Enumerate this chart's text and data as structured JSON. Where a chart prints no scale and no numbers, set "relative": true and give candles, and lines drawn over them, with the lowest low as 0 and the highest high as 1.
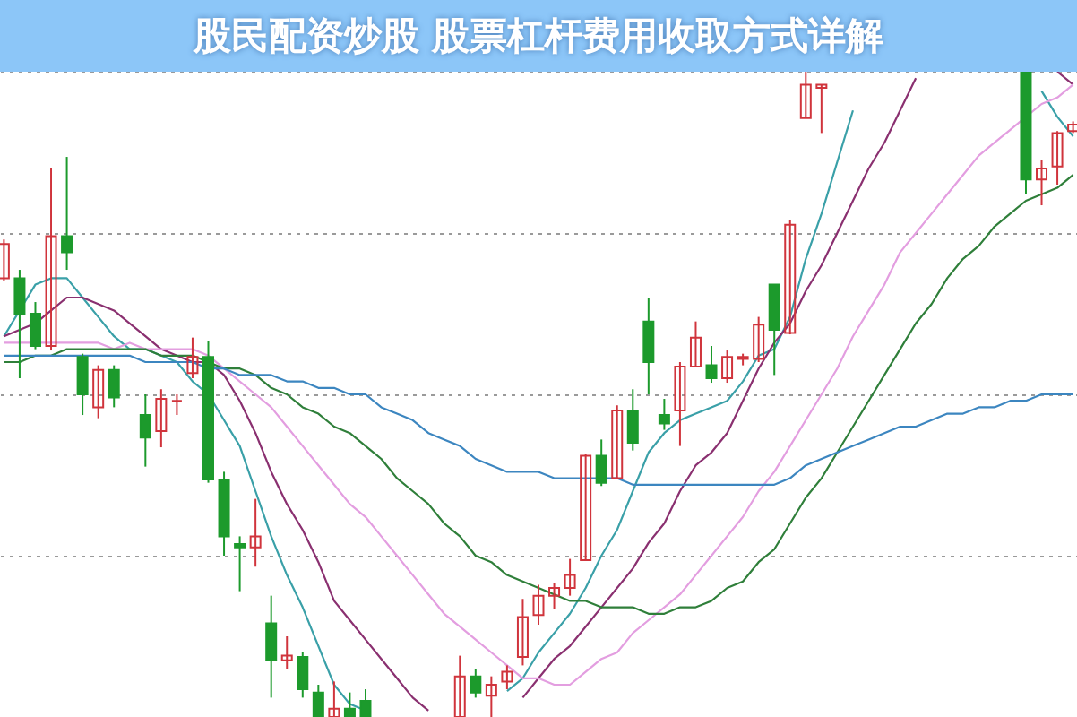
{
  "chart_data": {
    "type": "candlestick",
    "title": "股民配资炒股 股票杠杆费用收取方式详解",
    "relative": true,
    "grid": "y",
    "categories": [
      null,
      null,
      null,
      null,
      null,
      null,
      null,
      null,
      null,
      null,
      null,
      null,
      null,
      null,
      null,
      null,
      null,
      null,
      null,
      null,
      null,
      null,
      null,
      null,
      null,
      null,
      null,
      null,
      null,
      null,
      null,
      null,
      null,
      null,
      null,
      null,
      null,
      null,
      null,
      null,
      null,
      null,
      null,
      null,
      null,
      null,
      null,
      null,
      null,
      null,
      null,
      null,
      null,
      null,
      null,
      null,
      null,
      null,
      null,
      null,
      null,
      null,
      null,
      null,
      null,
      null,
      null,
      null,
      null
    ],
    "ohlc": [
      [
        0.68,
        0.74,
        0.675,
        0.733
      ],
      [
        0.68,
        0.693,
        0.525,
        0.625
      ],
      [
        0.625,
        0.643,
        0.57,
        0.575
      ],
      [
        0.575,
        0.85,
        0.568,
        0.745
      ],
      [
        0.745,
        0.868,
        0.693,
        0.72
      ],
      [
        0.558,
        0.563,
        0.468,
        0.5
      ],
      [
        0.48,
        0.545,
        0.463,
        0.538
      ],
      [
        0.538,
        0.545,
        0.48,
        0.495
      ],
      null,
      [
        0.468,
        0.5,
        0.388,
        0.433
      ],
      [
        0.443,
        0.508,
        0.418,
        0.493
      ],
      [
        0.49,
        0.5,
        0.468,
        0.49
      ],
      [
        0.533,
        0.588,
        0.525,
        0.558
      ],
      [
        0.558,
        0.583,
        0.363,
        0.368
      ],
      [
        0.368,
        0.38,
        0.25,
        0.28
      ],
      [
        0.268,
        0.28,
        0.195,
        0.263
      ],
      [
        0.263,
        0.338,
        0.233,
        0.28
      ],
      [
        0.145,
        0.188,
        0.03,
        0.088
      ],
      [
        0.088,
        0.125,
        0.075,
        0.095
      ],
      [
        0.093,
        0.1,
        0.03,
        0.043
      ],
      [
        0.038,
        0.05,
        0,
        0
      ],
      [
        0,
        0.055,
        0,
        0.013
      ],
      [
        0.013,
        0.038,
        0,
        0
      ],
      [
        0.025,
        0.043,
        0,
        0
      ],
      null,
      null,
      null,
      null,
      null,
      [
        0,
        0.095,
        0,
        0.063
      ],
      [
        0.063,
        0.075,
        0.03,
        0.038
      ],
      [
        0.033,
        0.063,
        0,
        0.05
      ],
      [
        0.055,
        0.08,
        0.043,
        0.07
      ],
      [
        0.093,
        0.183,
        0.08,
        0.155
      ],
      [
        0.158,
        0.205,
        0.143,
        0.188
      ],
      [
        0.188,
        0.208,
        0.168,
        0.2
      ],
      [
        0.2,
        0.245,
        0.188,
        0.22
      ],
      [
        0.243,
        0.408,
        0.243,
        0.405
      ],
      [
        0.405,
        0.43,
        0.358,
        0.363
      ],
      [
        0.37,
        0.483,
        0.37,
        0.475
      ],
      [
        0.475,
        0.508,
        0.413,
        0.425
      ],
      [
        0.613,
        0.65,
        0.5,
        0.55
      ],
      [
        0.468,
        0.493,
        0.445,
        0.455
      ],
      [
        0.475,
        0.55,
        0.42,
        0.543
      ],
      [
        0.543,
        0.613,
        0.543,
        0.588
      ],
      [
        0.545,
        0.575,
        0.518,
        0.525
      ],
      [
        0.525,
        0.568,
        0.518,
        0.558
      ],
      [
        0.555,
        0.563,
        0.545,
        0.558
      ],
      [
        0.555,
        0.62,
        0.55,
        0.608
      ],
      [
        0.67,
        0.67,
        0.53,
        0.6
      ],
      [
        0.595,
        0.77,
        0.593,
        0.763
      ],
      [
        0.928,
        1,
        0.928,
        0.98
      ],
      [
        0.975,
        0.98,
        0.905,
        0.98
      ],
      null,
      null,
      null,
      null,
      null,
      null,
      null,
      null,
      null,
      null,
      null,
      null,
      [
        1,
        1,
        0.81,
        0.833
      ],
      [
        0.833,
        0.863,
        0.793,
        0.85
      ],
      [
        0.853,
        0.908,
        0.825,
        0.905
      ],
      [
        0.908,
        0.923,
        0.905,
        0.918
      ]
    ],
    "colors": [
      "#d0343c",
      "#1c9a2c",
      "#1c9a2c",
      "#d0343c",
      "#1c9a2c",
      "#1c9a2c",
      "#d0343c",
      "#1c9a2c",
      null,
      "#1c9a2c",
      "#d0343c",
      "#d0343c",
      "#d0343c",
      "#1c9a2c",
      "#1c9a2c",
      "#1c9a2c",
      "#d0343c",
      "#1c9a2c",
      "#d0343c",
      "#1c9a2c",
      "#1c9a2c",
      "#d0343c",
      "#1c9a2c",
      "#1c9a2c",
      null,
      null,
      null,
      null,
      null,
      "#d0343c",
      "#1c9a2c",
      "#d0343c",
      "#d0343c",
      "#d0343c",
      "#d0343c",
      "#d0343c",
      "#d0343c",
      "#d0343c",
      "#1c9a2c",
      "#d0343c",
      "#1c9a2c",
      "#1c9a2c",
      "#1c9a2c",
      "#d0343c",
      "#d0343c",
      "#1c9a2c",
      "#d0343c",
      "#d0343c",
      "#d0343c",
      "#1c9a2c",
      "#d0343c",
      "#d0343c",
      "#d0343c",
      null,
      null,
      null,
      null,
      null,
      null,
      null,
      null,
      null,
      null,
      null,
      null,
      "#1c9a2c",
      "#d0343c",
      "#d0343c",
      "#d0343c"
    ],
    "series": [
      {
        "type": "line",
        "color": "#3aa0a8",
        "values": [
          0.59,
          0.63,
          0.67,
          0.68,
          0.68,
          0.65,
          0.62,
          0.59,
          0.57,
          0.57,
          0.56,
          0.55,
          0.52,
          0.5,
          0.46,
          0.42,
          0.35,
          0.28,
          0.22,
          0.17,
          0.11,
          0.05,
          0.02,
          0.01,
          null,
          null,
          null,
          null,
          null,
          null,
          null,
          null,
          0.04,
          0.06,
          0.1,
          0.13,
          0.16,
          0.2,
          0.25,
          0.29,
          0.35,
          0.41,
          0.44,
          0.46,
          0.47,
          0.48,
          0.49,
          0.52,
          0.56,
          0.57,
          0.62,
          0.71,
          0.78,
          0.86,
          0.94,
          null,
          null,
          null,
          null,
          null,
          null,
          null,
          null,
          null,
          null,
          null,
          0.97,
          0.93,
          0.9
        ]
      },
      {
        "type": "line",
        "color": "#8a3070",
        "values": [
          0.59,
          0.6,
          0.61,
          0.63,
          0.65,
          0.65,
          0.64,
          0.63,
          0.61,
          0.59,
          0.57,
          0.56,
          0.55,
          0.55,
          0.53,
          0.49,
          0.44,
          0.38,
          0.33,
          0.29,
          0.24,
          0.18,
          0.15,
          0.12,
          0.09,
          0.06,
          0.03,
          0.01,
          null,
          null,
          null,
          null,
          null,
          0.03,
          0.06,
          0.09,
          0.11,
          0.14,
          0.17,
          0.2,
          0.23,
          0.27,
          0.3,
          0.35,
          0.39,
          0.41,
          0.44,
          0.49,
          0.54,
          0.58,
          0.61,
          0.66,
          0.7,
          0.75,
          0.8,
          0.85,
          0.89,
          0.94,
          0.99,
          null,
          null,
          null,
          null,
          null,
          null,
          null,
          null,
          1,
          0.98
        ]
      },
      {
        "type": "line",
        "color": "#e39ee0",
        "values": [
          0.58,
          0.58,
          0.58,
          0.58,
          0.58,
          0.58,
          0.58,
          0.57,
          0.58,
          0.57,
          0.57,
          0.57,
          0.57,
          0.56,
          0.54,
          0.52,
          0.5,
          0.48,
          0.45,
          0.42,
          0.39,
          0.36,
          0.33,
          0.31,
          0.28,
          0.25,
          0.22,
          0.19,
          0.16,
          0.14,
          0.12,
          0.1,
          0.08,
          0.06,
          0.06,
          0.05,
          0.05,
          0.07,
          0.09,
          0.1,
          0.13,
          0.15,
          0.17,
          0.19,
          0.22,
          0.25,
          0.28,
          0.31,
          0.35,
          0.38,
          0.42,
          0.46,
          0.5,
          0.54,
          0.59,
          0.63,
          0.67,
          0.72,
          0.75,
          0.78,
          0.81,
          0.84,
          0.87,
          0.89,
          0.91,
          0.93,
          0.95,
          0.96,
          0.98
        ]
      },
      {
        "type": "line",
        "color": "#2f7f3a",
        "values": [
          0.55,
          0.55,
          0.56,
          0.56,
          0.57,
          0.57,
          0.57,
          0.57,
          0.57,
          0.57,
          0.56,
          0.56,
          0.56,
          0.55,
          0.54,
          0.54,
          0.53,
          0.51,
          0.5,
          0.48,
          0.47,
          0.45,
          0.44,
          0.42,
          0.4,
          0.37,
          0.35,
          0.33,
          0.3,
          0.28,
          0.25,
          0.24,
          0.22,
          0.21,
          0.2,
          0.19,
          0.18,
          0.18,
          0.17,
          0.17,
          0.17,
          0.16,
          0.16,
          0.17,
          0.17,
          0.18,
          0.2,
          0.21,
          0.24,
          0.26,
          0.3,
          0.34,
          0.37,
          0.41,
          0.45,
          0.49,
          0.53,
          0.57,
          0.61,
          0.64,
          0.68,
          0.71,
          0.73,
          0.76,
          0.78,
          0.8,
          0.81,
          0.82,
          0.84
        ]
      },
      {
        "type": "line",
        "color": "#3c86c0",
        "values": [
          0.56,
          0.56,
          0.56,
          0.56,
          0.56,
          0.56,
          0.56,
          0.56,
          0.56,
          0.55,
          0.55,
          0.55,
          0.55,
          0.54,
          0.54,
          0.53,
          0.53,
          0.53,
          0.52,
          0.52,
          0.51,
          0.51,
          0.5,
          0.5,
          0.48,
          0.47,
          0.46,
          0.44,
          0.43,
          0.42,
          0.4,
          0.39,
          0.38,
          0.38,
          0.38,
          0.37,
          0.37,
          0.37,
          0.37,
          0.37,
          0.36,
          0.36,
          0.36,
          0.36,
          0.36,
          0.36,
          0.36,
          0.36,
          0.36,
          0.36,
          0.37,
          0.39,
          0.4,
          0.41,
          0.42,
          0.43,
          0.44,
          0.45,
          0.45,
          0.46,
          0.47,
          0.47,
          0.48,
          0.48,
          0.49,
          0.49,
          0.5,
          0.5,
          0.5
        ]
      }
    ]
  }
}
